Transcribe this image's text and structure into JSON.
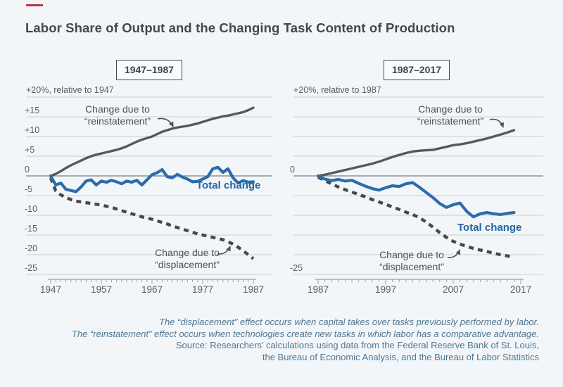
{
  "page": {
    "title": "Labor Share of Output and the Changing Task Content of Production",
    "accent_color": "#b13a42",
    "background_color": "#f3f6f8"
  },
  "colors": {
    "reinstatement_line": "#55595e",
    "total_change_line": "#2b6cad",
    "displacement_line": "#45484d",
    "total_change_label": "#2166a5",
    "gridline": "#c8cfd5",
    "zero_line": "#8d949a",
    "axis": "#9aa1a7",
    "annotation_text": "#4b5157",
    "footnote_text": "#4d7796"
  },
  "chart_data": [
    {
      "type": "line",
      "period_label": "1947–1987",
      "axis_note": "+20%, relative to 1947",
      "x_range": [
        1947,
        1987
      ],
      "x_tick_labels": [
        "1947",
        "1957",
        "1967",
        "1977",
        "1987"
      ],
      "ylim": [
        -25,
        20
      ],
      "y_gridlines": [
        20,
        15,
        10,
        5,
        0,
        -5,
        -10,
        -15,
        -20,
        -25
      ],
      "y_axis_labels": [
        {
          "value": 15,
          "label": "+15"
        },
        {
          "value": 10,
          "label": "+10"
        },
        {
          "value": 5,
          "label": "+5"
        },
        {
          "value": 0,
          "label": "0"
        },
        {
          "value": -5,
          "label": "-5"
        },
        {
          "value": -10,
          "label": "-10"
        },
        {
          "value": -15,
          "label": "-15"
        },
        {
          "value": -20,
          "label": "-20"
        },
        {
          "value": -25,
          "label": "-25"
        }
      ],
      "series": [
        {
          "name": "Change due to “reinstatement”",
          "style": "solid-gray",
          "points": [
            [
              1947,
              0
            ],
            [
              1948,
              0.5
            ],
            [
              1949,
              1.2
            ],
            [
              1950,
              2.0
            ],
            [
              1951,
              2.7
            ],
            [
              1952,
              3.3
            ],
            [
              1953,
              3.9
            ],
            [
              1954,
              4.5
            ],
            [
              1955,
              5.0
            ],
            [
              1956,
              5.4
            ],
            [
              1957,
              5.7
            ],
            [
              1958,
              6.0
            ],
            [
              1959,
              6.3
            ],
            [
              1960,
              6.6
            ],
            [
              1961,
              7.0
            ],
            [
              1962,
              7.5
            ],
            [
              1963,
              8.1
            ],
            [
              1964,
              8.7
            ],
            [
              1965,
              9.2
            ],
            [
              1966,
              9.6
            ],
            [
              1967,
              10.0
            ],
            [
              1968,
              10.6
            ],
            [
              1969,
              11.2
            ],
            [
              1970,
              11.6
            ],
            [
              1971,
              12.0
            ],
            [
              1972,
              12.3
            ],
            [
              1973,
              12.5
            ],
            [
              1974,
              12.7
            ],
            [
              1975,
              13.0
            ],
            [
              1976,
              13.3
            ],
            [
              1977,
              13.7
            ],
            [
              1978,
              14.1
            ],
            [
              1979,
              14.5
            ],
            [
              1980,
              14.8
            ],
            [
              1981,
              15.1
            ],
            [
              1982,
              15.3
            ],
            [
              1983,
              15.6
            ],
            [
              1984,
              15.9
            ],
            [
              1985,
              16.2
            ],
            [
              1986,
              16.7
            ],
            [
              1987,
              17.3
            ]
          ]
        },
        {
          "name": "Total change",
          "style": "solid-blue",
          "points": [
            [
              1947,
              0
            ],
            [
              1948,
              -2.3
            ],
            [
              1949,
              -1.8
            ],
            [
              1950,
              -3.4
            ],
            [
              1951,
              -3.7
            ],
            [
              1952,
              -4.0
            ],
            [
              1953,
              -2.8
            ],
            [
              1954,
              -1.3
            ],
            [
              1955,
              -1.0
            ],
            [
              1956,
              -2.3
            ],
            [
              1957,
              -1.3
            ],
            [
              1958,
              -1.6
            ],
            [
              1959,
              -1.1
            ],
            [
              1960,
              -1.5
            ],
            [
              1961,
              -2.0
            ],
            [
              1962,
              -1.3
            ],
            [
              1963,
              -1.6
            ],
            [
              1964,
              -1.1
            ],
            [
              1965,
              -2.3
            ],
            [
              1966,
              -1.0
            ],
            [
              1967,
              0.3
            ],
            [
              1968,
              0.8
            ],
            [
              1969,
              1.6
            ],
            [
              1970,
              -0.2
            ],
            [
              1971,
              -0.5
            ],
            [
              1972,
              0.4
            ],
            [
              1973,
              -0.3
            ],
            [
              1974,
              -0.8
            ],
            [
              1975,
              -1.5
            ],
            [
              1976,
              -1.4
            ],
            [
              1977,
              -0.8
            ],
            [
              1978,
              -0.2
            ],
            [
              1979,
              1.8
            ],
            [
              1980,
              2.2
            ],
            [
              1981,
              0.9
            ],
            [
              1982,
              1.8
            ],
            [
              1983,
              -0.5
            ],
            [
              1984,
              -1.8
            ],
            [
              1985,
              -1.2
            ],
            [
              1986,
              -1.6
            ],
            [
              1987,
              -1.5
            ]
          ]
        },
        {
          "name": "Change due to “displacement”",
          "style": "dashed-gray",
          "points": [
            [
              1947,
              -0.5
            ],
            [
              1948,
              -3.8
            ],
            [
              1949,
              -4.8
            ],
            [
              1950,
              -5.5
            ],
            [
              1951,
              -6.0
            ],
            [
              1952,
              -6.4
            ],
            [
              1953,
              -6.6
            ],
            [
              1954,
              -6.8
            ],
            [
              1955,
              -7.0
            ],
            [
              1956,
              -7.2
            ],
            [
              1957,
              -7.4
            ],
            [
              1958,
              -7.7
            ],
            [
              1959,
              -8.0
            ],
            [
              1960,
              -8.4
            ],
            [
              1961,
              -8.8
            ],
            [
              1962,
              -9.2
            ],
            [
              1963,
              -9.6
            ],
            [
              1964,
              -10.0
            ],
            [
              1965,
              -10.4
            ],
            [
              1966,
              -10.7
            ],
            [
              1967,
              -11.0
            ],
            [
              1968,
              -11.4
            ],
            [
              1969,
              -11.8
            ],
            [
              1970,
              -12.2
            ],
            [
              1971,
              -12.7
            ],
            [
              1972,
              -13.1
            ],
            [
              1973,
              -13.5
            ],
            [
              1974,
              -13.9
            ],
            [
              1975,
              -14.3
            ],
            [
              1976,
              -14.7
            ],
            [
              1977,
              -15.0
            ],
            [
              1978,
              -15.3
            ],
            [
              1979,
              -15.6
            ],
            [
              1980,
              -15.9
            ],
            [
              1981,
              -16.2
            ],
            [
              1982,
              -16.7
            ],
            [
              1983,
              -17.3
            ],
            [
              1984,
              -18.1
            ],
            [
              1985,
              -19.0
            ],
            [
              1986,
              -20.0
            ],
            [
              1987,
              -21.0
            ]
          ]
        }
      ],
      "annotations": [
        {
          "id": "reinstatement",
          "lines": [
            "Change due to",
            "“reinstatement”"
          ]
        },
        {
          "id": "total-change",
          "lines": [
            "Total change"
          ]
        },
        {
          "id": "displacement",
          "lines": [
            "Change due to",
            "“displacement”"
          ]
        }
      ]
    },
    {
      "type": "line",
      "period_label": "1987–2017",
      "axis_note": "+20%, relative to 1987",
      "x_range": [
        1987,
        2017
      ],
      "x_tick_labels": [
        "1987",
        "1997",
        "2007",
        "2017"
      ],
      "ylim": [
        -25,
        20
      ],
      "y_gridlines": [
        20,
        15,
        10,
        5,
        0,
        -5,
        -10,
        -15,
        -20,
        -25
      ],
      "y_axis_labels": [
        {
          "value": 0,
          "label": "0"
        },
        {
          "value": -25,
          "label": "-25"
        }
      ],
      "series": [
        {
          "name": "Change due to “reinstatement”",
          "style": "solid-gray",
          "points": [
            [
              1987,
              0
            ],
            [
              1988,
              0.3
            ],
            [
              1989,
              0.7
            ],
            [
              1990,
              1.1
            ],
            [
              1991,
              1.5
            ],
            [
              1992,
              1.9
            ],
            [
              1993,
              2.3
            ],
            [
              1994,
              2.7
            ],
            [
              1995,
              3.1
            ],
            [
              1996,
              3.6
            ],
            [
              1997,
              4.2
            ],
            [
              1998,
              4.8
            ],
            [
              1999,
              5.3
            ],
            [
              2000,
              5.8
            ],
            [
              2001,
              6.2
            ],
            [
              2002,
              6.4
            ],
            [
              2003,
              6.5
            ],
            [
              2004,
              6.6
            ],
            [
              2005,
              7.0
            ],
            [
              2006,
              7.4
            ],
            [
              2007,
              7.8
            ],
            [
              2008,
              8.0
            ],
            [
              2009,
              8.3
            ],
            [
              2010,
              8.7
            ],
            [
              2011,
              9.1
            ],
            [
              2012,
              9.5
            ],
            [
              2013,
              10.0
            ],
            [
              2014,
              10.5
            ],
            [
              2015,
              11.0
            ],
            [
              2016,
              11.6
            ]
          ]
        },
        {
          "name": "Total change",
          "style": "solid-blue",
          "points": [
            [
              1987,
              0
            ],
            [
              1988,
              -0.8
            ],
            [
              1989,
              -1.2
            ],
            [
              1990,
              -0.9
            ],
            [
              1991,
              -1.3
            ],
            [
              1992,
              -1.1
            ],
            [
              1993,
              -1.9
            ],
            [
              1994,
              -2.6
            ],
            [
              1995,
              -3.2
            ],
            [
              1996,
              -3.6
            ],
            [
              1997,
              -3.0
            ],
            [
              1998,
              -2.5
            ],
            [
              1999,
              -2.7
            ],
            [
              2000,
              -2.0
            ],
            [
              2001,
              -1.7
            ],
            [
              2002,
              -2.9
            ],
            [
              2003,
              -4.2
            ],
            [
              2004,
              -5.5
            ],
            [
              2005,
              -7.0
            ],
            [
              2006,
              -8.0
            ],
            [
              2007,
              -7.3
            ],
            [
              2008,
              -6.9
            ],
            [
              2009,
              -9.0
            ],
            [
              2010,
              -10.4
            ],
            [
              2011,
              -9.6
            ],
            [
              2012,
              -9.3
            ],
            [
              2013,
              -9.6
            ],
            [
              2014,
              -9.8
            ],
            [
              2015,
              -9.5
            ],
            [
              2016,
              -9.3
            ]
          ]
        },
        {
          "name": "Change due to “displacement”",
          "style": "dashed-gray",
          "points": [
            [
              1987,
              -0.3
            ],
            [
              1988,
              -1.2
            ],
            [
              1989,
              -2.0
            ],
            [
              1990,
              -2.8
            ],
            [
              1991,
              -3.5
            ],
            [
              1992,
              -4.1
            ],
            [
              1993,
              -4.7
            ],
            [
              1994,
              -5.3
            ],
            [
              1995,
              -6.0
            ],
            [
              1996,
              -6.6
            ],
            [
              1997,
              -7.2
            ],
            [
              1998,
              -7.9
            ],
            [
              1999,
              -8.5
            ],
            [
              2000,
              -9.2
            ],
            [
              2001,
              -9.8
            ],
            [
              2002,
              -10.6
            ],
            [
              2003,
              -11.7
            ],
            [
              2004,
              -13.0
            ],
            [
              2005,
              -14.4
            ],
            [
              2006,
              -15.6
            ],
            [
              2007,
              -16.6
            ],
            [
              2008,
              -17.3
            ],
            [
              2009,
              -17.9
            ],
            [
              2010,
              -18.4
            ],
            [
              2011,
              -18.8
            ],
            [
              2012,
              -19.2
            ],
            [
              2013,
              -19.6
            ],
            [
              2014,
              -20.0
            ],
            [
              2015,
              -20.3
            ],
            [
              2016,
              -20.6
            ]
          ]
        }
      ],
      "annotations": [
        {
          "id": "reinstatement",
          "lines": [
            "Change due to",
            "“reinstatement”"
          ]
        },
        {
          "id": "total-change",
          "lines": [
            "Total change"
          ]
        },
        {
          "id": "displacement",
          "lines": [
            "Change due to",
            "“displacement”"
          ]
        }
      ]
    }
  ],
  "footnote": {
    "lines": [
      {
        "text": "The “displacement” effect occurs when capital takes over tasks previously performed by labor.",
        "italic": true
      },
      {
        "text": "The “reinstatement” effect occurs when technologies create new tasks in which labor has a comparative advantage.",
        "italic": true
      },
      {
        "text": "Source: Researchers’ calculations using data from the Federal Reserve Bank of St. Louis,",
        "italic": false
      },
      {
        "text": "the Bureau of Economic Analysis, and the Bureau of Labor Statistics",
        "italic": false
      }
    ]
  }
}
